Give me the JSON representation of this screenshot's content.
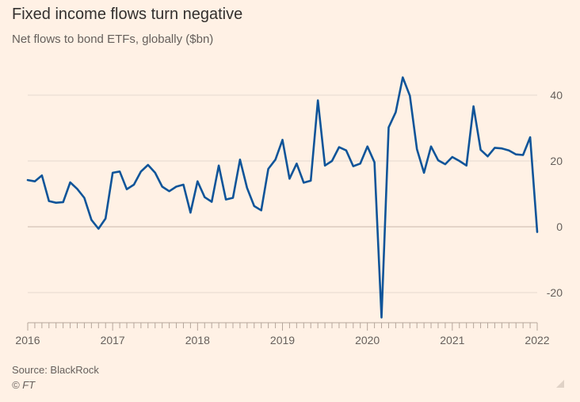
{
  "header": {
    "title": "Fixed income flows turn negative",
    "subtitle": "Net flows to bond ETFs, globally ($bn)"
  },
  "footer": {
    "source": "Source: BlackRock",
    "credit": "© FT"
  },
  "colors": {
    "background": "#fff1e5",
    "line": "#0f5499",
    "grid": "#e6d9ce",
    "zero_line": "#c8b8ab",
    "axis": "#b5a69b",
    "text": "#66605c"
  },
  "chart_data": {
    "type": "line",
    "title": "Fixed income flows turn negative",
    "subtitle": "Net flows to bond ETFs, globally ($bn)",
    "xlabel": "",
    "ylabel": "",
    "grid": true,
    "x_ticks": [
      "2016",
      "2017",
      "2018",
      "2019",
      "2020",
      "2021",
      "2022"
    ],
    "y_ticks": [
      40,
      20,
      0,
      -20
    ],
    "y_tick_labels": [
      "40",
      "20",
      "0",
      "-20"
    ],
    "xlim": [
      "2016-01",
      "2022-01"
    ],
    "ylim": [
      -29,
      45
    ],
    "series": [
      {
        "name": "Net flows to bond ETFs",
        "x": [
          "2016-01",
          "2016-02",
          "2016-03",
          "2016-04",
          "2016-05",
          "2016-06",
          "2016-07",
          "2016-08",
          "2016-09",
          "2016-10",
          "2016-11",
          "2016-12",
          "2017-01",
          "2017-02",
          "2017-03",
          "2017-04",
          "2017-05",
          "2017-06",
          "2017-07",
          "2017-08",
          "2017-09",
          "2017-10",
          "2017-11",
          "2017-12",
          "2018-01",
          "2018-02",
          "2018-03",
          "2018-04",
          "2018-05",
          "2018-06",
          "2018-07",
          "2018-08",
          "2018-09",
          "2018-10",
          "2018-11",
          "2018-12",
          "2019-01",
          "2019-02",
          "2019-03",
          "2019-04",
          "2019-05",
          "2019-06",
          "2019-07",
          "2019-08",
          "2019-09",
          "2019-10",
          "2019-11",
          "2019-12",
          "2020-01",
          "2020-02",
          "2020-03",
          "2020-04",
          "2020-05",
          "2020-06",
          "2020-07",
          "2020-08",
          "2020-09",
          "2020-10",
          "2020-11",
          "2020-12",
          "2021-01",
          "2021-02",
          "2021-03",
          "2021-04",
          "2021-05",
          "2021-06",
          "2021-07",
          "2021-08",
          "2021-09",
          "2021-10",
          "2021-11",
          "2021-12",
          "2022-01"
        ],
        "values": [
          14.2,
          13.8,
          15.6,
          7.8,
          7.3,
          7.5,
          13.5,
          11.5,
          8.8,
          2.1,
          -0.6,
          2.5,
          16.4,
          16.8,
          11.4,
          12.8,
          16.8,
          18.8,
          16.4,
          12.2,
          10.8,
          12.2,
          12.8,
          4.3,
          13.8,
          9.0,
          7.6,
          18.6,
          8.3,
          8.8,
          20.4,
          11.8,
          6.3,
          5.0,
          17.6,
          20.4,
          26.4,
          14.6,
          19.2,
          13.4,
          14.0,
          38.4,
          18.6,
          20.0,
          24.2,
          23.2,
          18.4,
          19.2,
          24.4,
          19.6,
          -27.6,
          30.2,
          34.8,
          45.4,
          39.8,
          23.6,
          16.4,
          24.4,
          20.2,
          19.0,
          21.2,
          20.0,
          18.6,
          36.6,
          23.4,
          21.4,
          24.0,
          23.8,
          23.2,
          22.0,
          21.8,
          27.2,
          -1.6
        ]
      }
    ]
  }
}
